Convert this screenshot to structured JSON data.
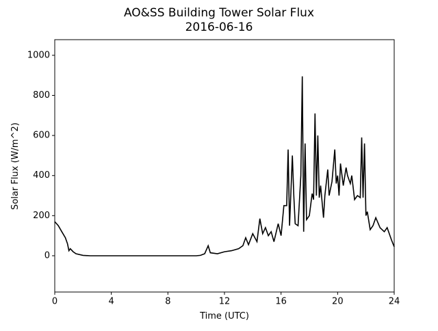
{
  "chart_data": {
    "type": "line",
    "title": "AO&SS Building Tower Solar Flux",
    "subtitle": "2016-06-16",
    "x_label": "Time (UTC)",
    "y_label": "Solar Flux (W/m^2)",
    "color": "#000000",
    "xlim": [
      0,
      24
    ],
    "xticks": [
      0,
      4,
      8,
      12,
      16,
      20,
      24
    ],
    "ylim": [
      -181,
      1078
    ],
    "yticks": [
      0,
      200,
      400,
      600,
      800,
      1000
    ],
    "x": [
      0,
      0.25,
      0.5,
      0.75,
      0.9,
      1.0,
      1.1,
      1.3,
      1.5,
      2,
      2.5,
      4,
      6,
      8,
      10,
      10.3,
      10.6,
      10.85,
      11,
      11.5,
      12,
      12.5,
      13,
      13.3,
      13.5,
      13.7,
      14,
      14.3,
      14.5,
      14.7,
      14.9,
      15.1,
      15.3,
      15.5,
      15.8,
      16,
      16.2,
      16.4,
      16.5,
      16.6,
      16.8,
      16.9,
      17,
      17.2,
      17.4,
      17.5,
      17.6,
      17.7,
      17.8,
      18,
      18.2,
      18.3,
      18.4,
      18.5,
      18.6,
      18.7,
      18.8,
      19,
      19.1,
      19.3,
      19.4,
      19.6,
      19.8,
      19.9,
      20,
      20.1,
      20.2,
      20.4,
      20.6,
      20.7,
      20.9,
      21,
      21.2,
      21.4,
      21.6,
      21.7,
      21.8,
      21.9,
      22,
      22.1,
      22.3,
      22.5,
      22.7,
      23,
      23.3,
      23.5,
      23.8,
      24
    ],
    "values": [
      170,
      150,
      120,
      90,
      60,
      25,
      35,
      20,
      10,
      2,
      0,
      0,
      0,
      0,
      0,
      2,
      10,
      50,
      15,
      10,
      20,
      25,
      35,
      50,
      90,
      55,
      110,
      70,
      185,
      110,
      140,
      100,
      120,
      70,
      160,
      100,
      250,
      250,
      530,
      150,
      500,
      300,
      160,
      150,
      400,
      895,
      120,
      560,
      180,
      200,
      310,
      280,
      710,
      300,
      600,
      290,
      350,
      190,
      300,
      430,
      300,
      370,
      530,
      360,
      400,
      300,
      460,
      350,
      440,
      400,
      360,
      400,
      280,
      300,
      290,
      590,
      290,
      560,
      200,
      220,
      130,
      150,
      190,
      140,
      120,
      140,
      80,
      45
    ]
  }
}
